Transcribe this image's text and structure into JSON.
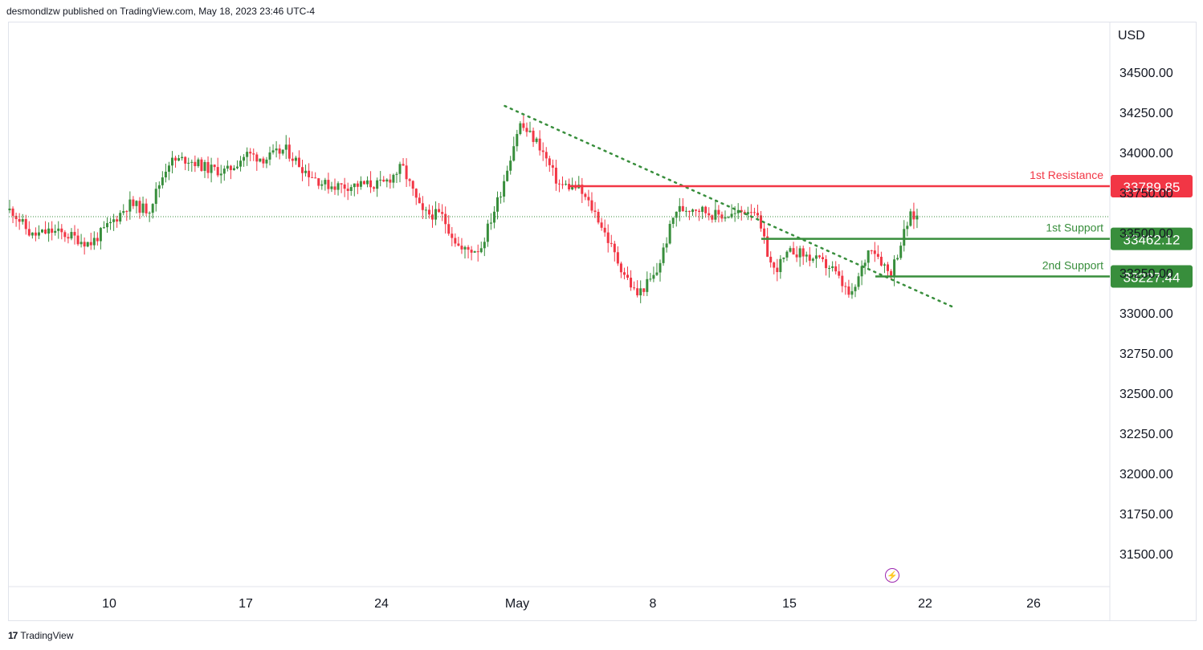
{
  "header": {
    "publisher_text": "desmondlzw published on TradingView.com, May 18, 2023 23:46 UTC-4"
  },
  "footer": {
    "brand": "TradingView",
    "logo_mark": "17"
  },
  "colors": {
    "up": "#388e3c",
    "down": "#f23645",
    "resistance": "#f23645",
    "support": "#388e3c",
    "trendline": "#388e3c"
  },
  "chart_data": {
    "type": "candlestick",
    "currency": "USD",
    "ylim": [
      31300,
      34750
    ],
    "y_ticks": [
      "34500.00",
      "34250.00",
      "34000.00",
      "33750.00",
      "33500.00",
      "33250.00",
      "33000.00",
      "32750.00",
      "32500.00",
      "32250.00",
      "32000.00",
      "31750.00",
      "31500.00"
    ],
    "x_ticks": [
      "10",
      "17",
      "24",
      "May",
      "8",
      "15",
      "22",
      "26"
    ],
    "levels": [
      {
        "label": "1st Resistance",
        "price": "33789.85",
        "value": 33789.85,
        "kind": "resistance"
      },
      {
        "label": "1st Support",
        "price": "33462.12",
        "value": 33462.12,
        "kind": "support"
      },
      {
        "label": "2nd Support",
        "price": "33227.44",
        "value": 33227.44,
        "kind": "support"
      }
    ],
    "trendline": {
      "style": "dotted",
      "start": {
        "date": "Apr 30",
        "price": 34290
      },
      "end": {
        "date": "May 23",
        "price": 33040
      }
    },
    "last_price": 33600,
    "ohlc_anchors": [
      {
        "d": "Apr 5",
        "p": 33640
      },
      {
        "d": "Apr 6",
        "p": 33480
      },
      {
        "d": "Apr 7",
        "p": 33510
      },
      {
        "d": "Apr 8",
        "p": 33480
      },
      {
        "d": "Apr 9",
        "p": 33430
      },
      {
        "d": "Apr 10",
        "p": 33550
      },
      {
        "d": "Apr 11",
        "p": 33680
      },
      {
        "d": "Apr 12",
        "p": 33640
      },
      {
        "d": "Apr 13",
        "p": 33940
      },
      {
        "d": "Apr 14",
        "p": 33960
      },
      {
        "d": "Apr 15",
        "p": 33900
      },
      {
        "d": "Apr 16",
        "p": 33880
      },
      {
        "d": "Apr 17",
        "p": 33990
      },
      {
        "d": "Apr 18",
        "p": 33960
      },
      {
        "d": "Apr 19",
        "p": 34020
      },
      {
        "d": "Apr 20",
        "p": 33890
      },
      {
        "d": "Apr 21",
        "p": 33800
      },
      {
        "d": "Apr 22",
        "p": 33790
      },
      {
        "d": "Apr 23",
        "p": 33800
      },
      {
        "d": "Apr 24",
        "p": 33800
      },
      {
        "d": "Apr 25",
        "p": 33910
      },
      {
        "d": "Apr 26",
        "p": 33620
      },
      {
        "d": "Apr 27",
        "p": 33610
      },
      {
        "d": "Apr 28",
        "p": 33390
      },
      {
        "d": "Apr 29",
        "p": 33400
      },
      {
        "d": "Apr 30",
        "p": 33740
      },
      {
        "d": "May 1",
        "p": 34180
      },
      {
        "d": "May 2",
        "p": 34050
      },
      {
        "d": "May 3",
        "p": 33800
      },
      {
        "d": "May 4",
        "p": 33780
      },
      {
        "d": "May 5",
        "p": 33600
      },
      {
        "d": "May 6",
        "p": 33330
      },
      {
        "d": "May 7",
        "p": 33110
      },
      {
        "d": "May 8",
        "p": 33240
      },
      {
        "d": "May 9",
        "p": 33640
      },
      {
        "d": "May 10",
        "p": 33660
      },
      {
        "d": "May 11",
        "p": 33610
      },
      {
        "d": "May 12",
        "p": 33610
      },
      {
        "d": "May 13",
        "p": 33660
      },
      {
        "d": "May 14",
        "p": 33260
      },
      {
        "d": "May 15",
        "p": 33390
      },
      {
        "d": "May 16",
        "p": 33340
      },
      {
        "d": "May 17",
        "p": 33280
      },
      {
        "d": "May 18",
        "p": 33090
      },
      {
        "d": "May 19",
        "p": 33430
      },
      {
        "d": "May 20",
        "p": 33240
      },
      {
        "d": "May 21",
        "p": 33600
      }
    ]
  }
}
